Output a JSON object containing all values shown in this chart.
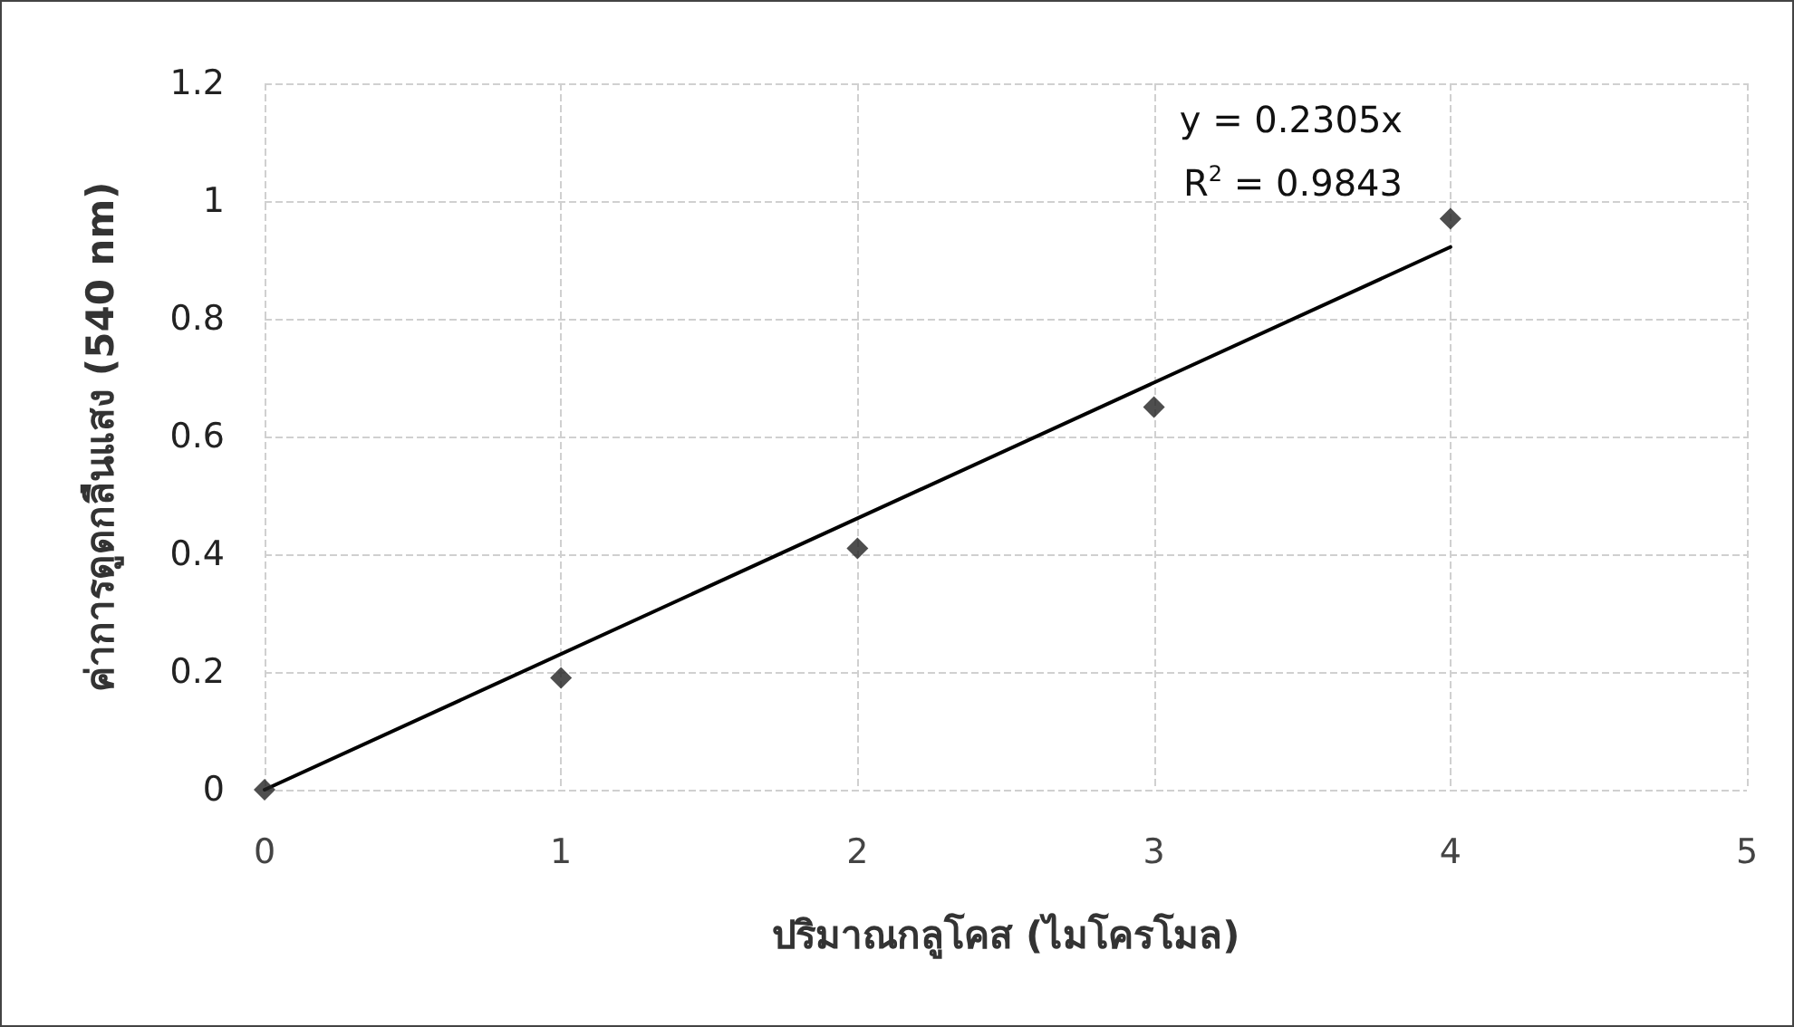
{
  "chart_data": {
    "type": "scatter",
    "xlabel": "ปริมาณกลูโคส (ไมโครโมล)",
    "ylabel": "ค่าการดูดกลืนแสง (540 nm)",
    "annotations": [
      "y = 0.2305x",
      "R$^{2}$ = 0.9843"
    ],
    "series": [
      {
        "color": "#222222",
        "x": [
          0,
          1,
          2,
          3,
          4
        ],
        "values": [
          0,
          0.19,
          0.41,
          0.65,
          0.97
        ],
        "marker": "diamond"
      },
      {
        "type": "line",
        "color": "#000000",
        "x": [
          0,
          4
        ],
        "values": [
          0,
          0.922
        ],
        "marker": "none",
        "line_style": "solid"
      }
    ],
    "xlim": [
      0,
      5
    ],
    "xticks": [
      0,
      1,
      2,
      3,
      4,
      5
    ],
    "ylim": [
      0,
      1.2
    ],
    "yticks": [
      0,
      0.2,
      0.4,
      0.6,
      0.8,
      1,
      1.2
    ],
    "grid": true
  }
}
